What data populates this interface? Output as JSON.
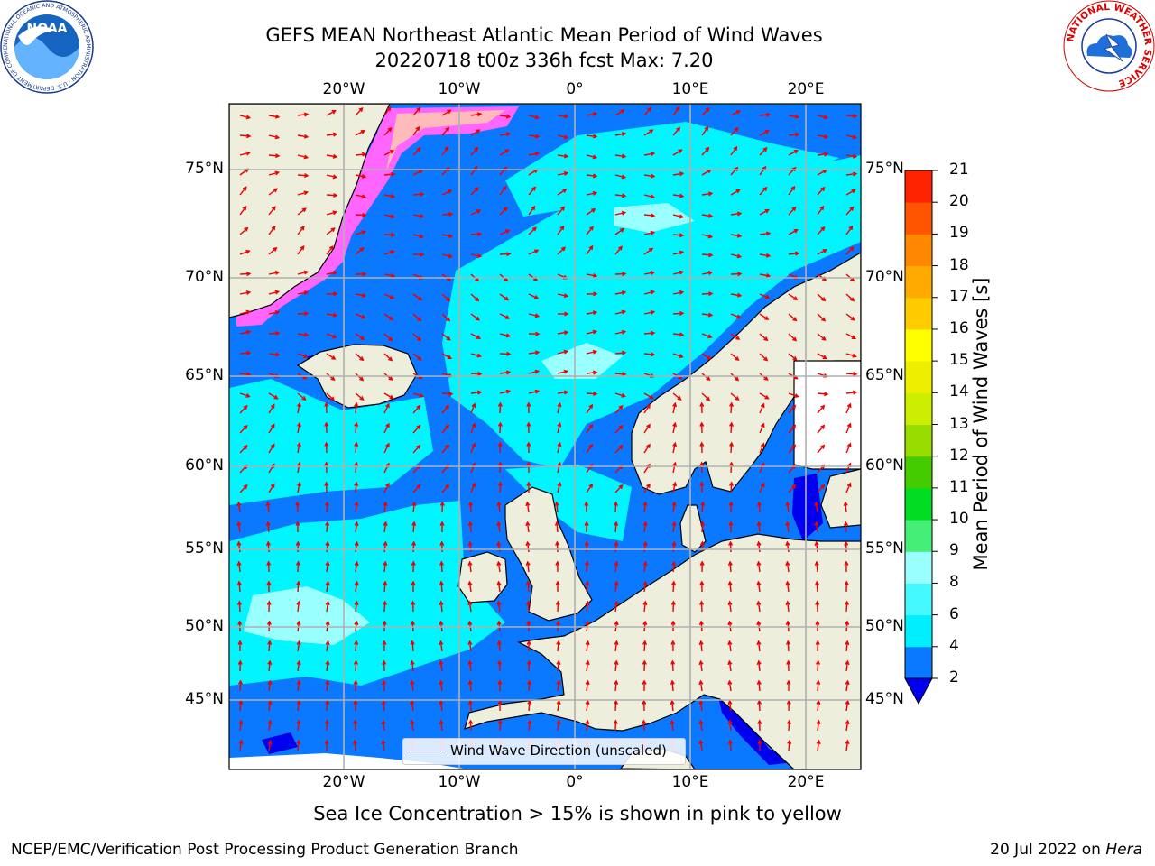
{
  "header": {
    "title_line1": "GEFS MEAN Northeast Atlantic Mean Period of Wind Waves",
    "title_line2": "20220718 t00z 336h fcst   Max: 7.20"
  },
  "logos": {
    "left_name": "NOAA",
    "left_ring_text": "NATIONAL OCEANIC AND ATMOSPHERIC ADMINISTRATION · U.S. DEPARTMENT OF COMMERCE",
    "right_ring_text": "NATIONAL WEATHER SERVICE"
  },
  "map": {
    "lon_labels": [
      "20°W",
      "10°W",
      "0°",
      "10°E",
      "20°E"
    ],
    "lat_labels": [
      "75°N",
      "70°N",
      "65°N",
      "60°N",
      "55°N",
      "50°N",
      "45°N"
    ],
    "legend_label": "Wind Wave Direction (unscaled)",
    "colors": {
      "land": "#eeeedd",
      "ocean_low": "#0a78ff",
      "ocean_mid": "#00f5ff",
      "ocean_hi": "#99ffff",
      "arrows": "#ee0000",
      "ice": "#ff66ff"
    }
  },
  "colorbar": {
    "title": "Mean Period of Wind Waves [s]",
    "tick_labels": [
      "2",
      "4",
      "6",
      "8",
      "9",
      "10",
      "11",
      "12",
      "13",
      "14",
      "15",
      "16",
      "17",
      "18",
      "19",
      "20",
      "21"
    ],
    "colors": [
      "#0a78ff",
      "#00eeff",
      "#44f8ff",
      "#99ffff",
      "#44ee77",
      "#00dd22",
      "#44cc00",
      "#99dd00",
      "#ccee00",
      "#eeee00",
      "#ffff00",
      "#ffcc00",
      "#ffaa00",
      "#ff8800",
      "#ff5500",
      "#ff2200"
    ],
    "under_color": "#0000ee"
  },
  "footer": {
    "note": "Sea Ice Concentration > 15% is shown in pink to yellow",
    "left": "NCEP/EMC/Verification Post Processing Product Generation Branch",
    "right_prefix": "20 Jul 2022 on ",
    "right_machine": "Hera"
  }
}
